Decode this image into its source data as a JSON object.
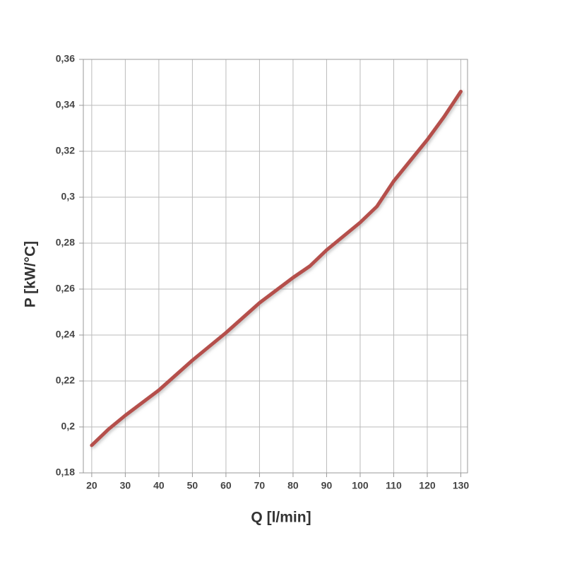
{
  "chart_data": {
    "type": "line",
    "x_label": "Q [l/min]",
    "y_label": "P [kW/°C]",
    "x": [
      20,
      25,
      30,
      40,
      50,
      60,
      70,
      80,
      85,
      90,
      100,
      105,
      110,
      120,
      125,
      130
    ],
    "series": [
      {
        "color": "#b5504c",
        "values": [
          0.192,
          0.199,
          0.205,
          0.216,
          0.229,
          0.241,
          0.254,
          0.265,
          0.27,
          0.277,
          0.289,
          0.296,
          0.307,
          0.325,
          0.335,
          0.346
        ]
      }
    ],
    "xlim": [
      17.5,
      132
    ],
    "xticks": [
      20,
      30,
      40,
      50,
      60,
      70,
      80,
      90,
      100,
      110,
      120,
      130
    ],
    "ylim": [
      0.18,
      0.36
    ],
    "yticks": [
      {
        "value": 0.18,
        "label": "0,18"
      },
      {
        "value": 0.2,
        "label": "0,2"
      },
      {
        "value": 0.22,
        "label": "0,22"
      },
      {
        "value": 0.24,
        "label": "0,24"
      },
      {
        "value": 0.26,
        "label": "0,26"
      },
      {
        "value": 0.28,
        "label": "0,28"
      },
      {
        "value": 0.3,
        "label": "0,3"
      },
      {
        "value": 0.32,
        "label": "0,32"
      },
      {
        "value": 0.34,
        "label": "0,34"
      },
      {
        "value": 0.36,
        "label": "0,36"
      }
    ],
    "grid": true
  }
}
